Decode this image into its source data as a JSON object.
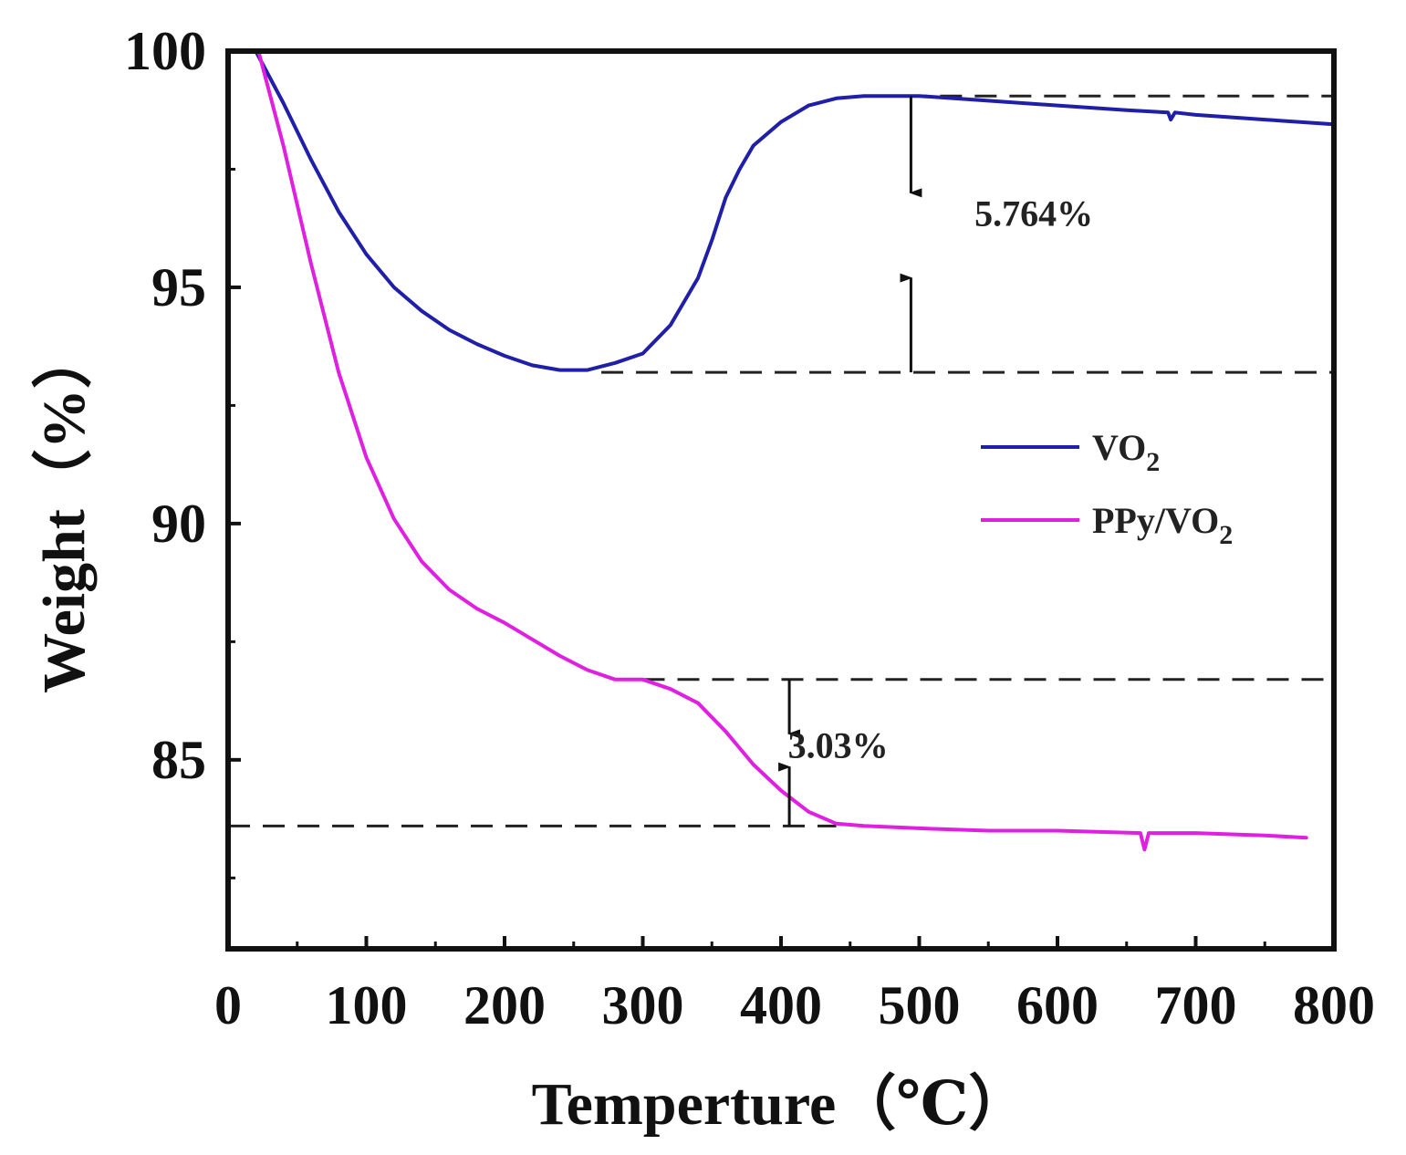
{
  "chart_data": {
    "type": "line",
    "title": "",
    "xlabel": "Temperture（℃）",
    "ylabel": "Weight（%）",
    "xlim": [
      0,
      800
    ],
    "ylim": [
      81,
      100
    ],
    "xticks": [
      0,
      100,
      200,
      300,
      400,
      500,
      600,
      700,
      800
    ],
    "yticks": [
      85,
      90,
      95,
      100
    ],
    "grid": false,
    "legend_position": "right-middle",
    "series": [
      {
        "name": "VO2",
        "label_main": "VO",
        "label_sub": "2",
        "color": "#1f1fa8",
        "points": [
          [
            20,
            100
          ],
          [
            40,
            98.9
          ],
          [
            60,
            97.7
          ],
          [
            80,
            96.6
          ],
          [
            100,
            95.7
          ],
          [
            120,
            95.0
          ],
          [
            140,
            94.5
          ],
          [
            160,
            94.1
          ],
          [
            180,
            93.8
          ],
          [
            200,
            93.55
          ],
          [
            220,
            93.35
          ],
          [
            240,
            93.25
          ],
          [
            260,
            93.25
          ],
          [
            280,
            93.4
          ],
          [
            300,
            93.6
          ],
          [
            320,
            94.2
          ],
          [
            340,
            95.2
          ],
          [
            350,
            96.0
          ],
          [
            360,
            96.9
          ],
          [
            370,
            97.5
          ],
          [
            380,
            98.0
          ],
          [
            400,
            98.5
          ],
          [
            420,
            98.85
          ],
          [
            440,
            99.0
          ],
          [
            460,
            99.05
          ],
          [
            480,
            99.05
          ],
          [
            500,
            99.05
          ],
          [
            550,
            98.95
          ],
          [
            600,
            98.85
          ],
          [
            650,
            98.75
          ],
          [
            680,
            98.7
          ],
          [
            682,
            98.55
          ],
          [
            685,
            98.7
          ],
          [
            700,
            98.65
          ],
          [
            750,
            98.55
          ],
          [
            800,
            98.45
          ]
        ]
      },
      {
        "name": "PPy/VO2",
        "label_main": "PPy/VO",
        "label_sub": "2",
        "color": "#e020e0",
        "points": [
          [
            22,
            100
          ],
          [
            40,
            98.0
          ],
          [
            60,
            95.5
          ],
          [
            80,
            93.2
          ],
          [
            100,
            91.4
          ],
          [
            120,
            90.1
          ],
          [
            140,
            89.2
          ],
          [
            160,
            88.6
          ],
          [
            180,
            88.2
          ],
          [
            200,
            87.9
          ],
          [
            220,
            87.55
          ],
          [
            240,
            87.2
          ],
          [
            260,
            86.9
          ],
          [
            280,
            86.7
          ],
          [
            300,
            86.7
          ],
          [
            320,
            86.5
          ],
          [
            340,
            86.2
          ],
          [
            360,
            85.6
          ],
          [
            380,
            84.9
          ],
          [
            400,
            84.35
          ],
          [
            420,
            83.9
          ],
          [
            440,
            83.65
          ],
          [
            460,
            83.6
          ],
          [
            500,
            83.55
          ],
          [
            550,
            83.5
          ],
          [
            600,
            83.5
          ],
          [
            660,
            83.45
          ],
          [
            663,
            83.1
          ],
          [
            666,
            83.45
          ],
          [
            700,
            83.45
          ],
          [
            750,
            83.4
          ],
          [
            780,
            83.35
          ]
        ]
      }
    ],
    "annotations": [
      {
        "text": "5.764%",
        "x": 540,
        "y": 96.3
      },
      {
        "text": "3.03%",
        "x": 405,
        "y": 85.05
      }
    ],
    "reference_lines": [
      {
        "y": 99.05,
        "x_start": 490,
        "x_end": 800
      },
      {
        "y": 93.2,
        "x_start": 270,
        "x_end": 800
      },
      {
        "y": 86.7,
        "x_start": 300,
        "x_end": 800
      },
      {
        "y": 83.6,
        "x_start": 0,
        "x_end": 440
      }
    ],
    "arrows": [
      {
        "x": 494,
        "y_from": 99.05,
        "y_to": 97.0
      },
      {
        "x": 494,
        "y_from": 93.2,
        "y_to": 95.2
      },
      {
        "x": 406,
        "y_from": 86.7,
        "y_to": 85.55
      },
      {
        "x": 406,
        "y_from": 83.6,
        "y_to": 84.85
      }
    ]
  }
}
